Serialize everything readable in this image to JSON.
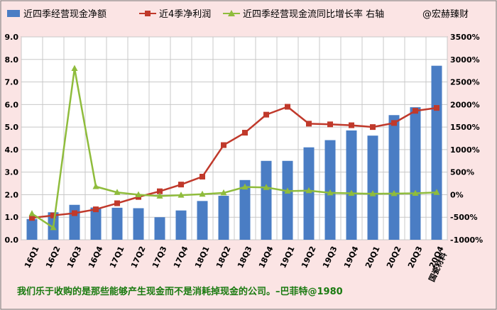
{
  "chart_data": {
    "type": "bar+line",
    "categories": [
      "16Q1",
      "16Q2",
      "16Q3",
      "16Q4",
      "17Q1",
      "17Q2",
      "17Q3",
      "17Q4",
      "18Q1",
      "18Q2",
      "18Q3",
      "18Q4",
      "19Q1",
      "19Q2",
      "19Q3",
      "19Q4",
      "20Q1",
      "20Q2",
      "20Q3",
      "20Q4"
    ],
    "series": [
      {
        "name": "近四季经营现金净额",
        "type": "bar",
        "axis": "left",
        "color": "#4a7dc4",
        "values": [
          0.92,
          1.22,
          1.55,
          1.43,
          1.42,
          1.4,
          1.0,
          1.3,
          1.72,
          1.95,
          2.65,
          3.5,
          3.5,
          4.1,
          4.42,
          4.85,
          4.62,
          5.53,
          5.88,
          7.72
        ]
      },
      {
        "name": "近4季净利润",
        "type": "line",
        "axis": "left",
        "color": "#c0392b",
        "marker": "square",
        "values": [
          0.97,
          1.08,
          1.18,
          1.35,
          1.62,
          1.9,
          2.15,
          2.45,
          2.8,
          4.2,
          4.75,
          5.55,
          5.9,
          5.15,
          5.12,
          5.08,
          5.0,
          5.18,
          5.72,
          5.85
        ]
      },
      {
        "name": "近四季经营现金流同比增长率 右轴",
        "type": "line",
        "axis": "right",
        "color": "#8fbc3c",
        "marker": "triangle",
        "values": [
          -420,
          -730,
          2800,
          180,
          50,
          0,
          -30,
          -10,
          10,
          40,
          170,
          160,
          80,
          90,
          40,
          30,
          20,
          25,
          30,
          50
        ]
      }
    ],
    "left_axis": {
      "min": 0,
      "max": 9,
      "step": 1,
      "ticks": [
        "0.0",
        "1.0",
        "2.0",
        "3.0",
        "4.0",
        "5.0",
        "6.0",
        "7.0",
        "8.0",
        "9.0"
      ]
    },
    "right_axis": {
      "min": -1000,
      "max": 3500,
      "step": 500,
      "ticks": [
        "-1000%",
        "-500%",
        "0%",
        "500%",
        "1000%",
        "1500%",
        "2000%",
        "2500%",
        "3000%",
        "3500%"
      ]
    },
    "grid": true,
    "legend_position": "top"
  },
  "legend": {
    "bar_label": "近四季经营现金净额",
    "profit_label": "近4季净利润",
    "growth_label": "近四季经营现金流同比增长率 右轴",
    "watermark": "@宏赫臻财"
  },
  "source_label": "国瓷材料",
  "quote": "我们乐于收购的是那些能够产生现金而不是消耗掉现金的公司。–巴菲特@1980"
}
